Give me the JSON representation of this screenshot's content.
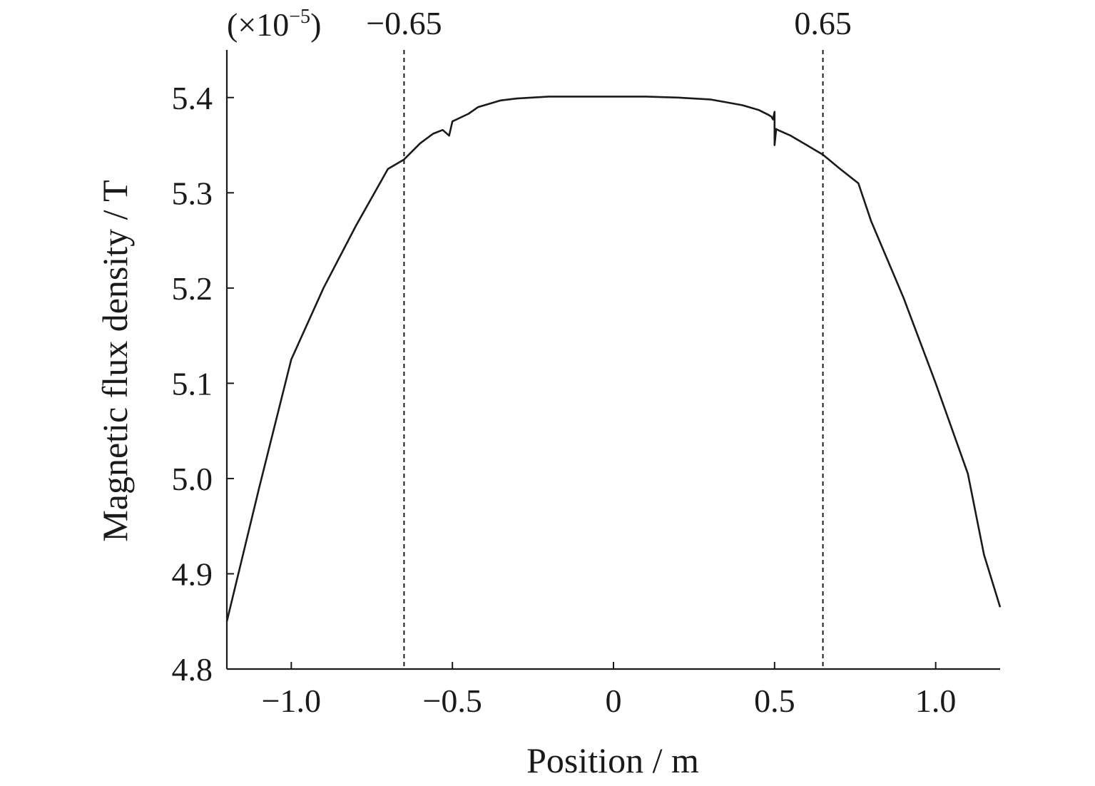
{
  "chart_data": {
    "type": "line",
    "title": "",
    "xlabel": "Position / m",
    "ylabel": "Magnetic flux density / T",
    "y_scale_prefix": "(×10",
    "y_scale_exponent": "−5",
    "y_scale_suffix": ")",
    "xlim": [
      -1.2,
      1.2
    ],
    "ylim": [
      4.8,
      5.45
    ],
    "grid": false,
    "legend": "none",
    "line_color": "#1a1a1a",
    "x_ticks": [
      {
        "value": -1.0,
        "label": "−1.0"
      },
      {
        "value": -0.5,
        "label": "−0.5"
      },
      {
        "value": 0,
        "label": "0"
      },
      {
        "value": 0.5,
        "label": "0.5"
      },
      {
        "value": 1.0,
        "label": "1.0"
      }
    ],
    "y_ticks": [
      {
        "value": 4.8,
        "label": "4.8"
      },
      {
        "value": 4.9,
        "label": "4.9"
      },
      {
        "value": 5.0,
        "label": "5.0"
      },
      {
        "value": 5.1,
        "label": "5.1"
      },
      {
        "value": 5.2,
        "label": "5.2"
      },
      {
        "value": 5.3,
        "label": "5.3"
      },
      {
        "value": 5.4,
        "label": "5.4"
      }
    ],
    "reference_lines": [
      {
        "x": -0.65,
        "label": "−0.65",
        "style": "dashed"
      },
      {
        "x": 0.65,
        "label": "0.65",
        "style": "dashed"
      }
    ],
    "series": [
      {
        "x": [
          -1.2,
          -1.1,
          -1.0,
          -0.9,
          -0.8,
          -0.7,
          -0.65,
          -0.6,
          -0.56,
          -0.53,
          -0.52,
          -0.51,
          -0.5,
          -0.45,
          -0.42,
          -0.35,
          -0.3,
          -0.2,
          -0.1,
          0.0,
          0.1,
          0.2,
          0.3,
          0.35,
          0.4,
          0.45,
          0.48,
          0.49,
          0.495,
          0.5,
          0.5,
          0.505,
          0.51,
          0.55,
          0.6,
          0.65,
          0.7,
          0.76,
          0.8,
          0.9,
          1.0,
          1.1,
          1.15,
          1.2
        ],
        "y": [
          4.85,
          4.99,
          5.125,
          5.2,
          5.265,
          5.325,
          5.335,
          5.352,
          5.362,
          5.366,
          5.363,
          5.36,
          5.375,
          5.383,
          5.39,
          5.397,
          5.399,
          5.401,
          5.401,
          5.401,
          5.401,
          5.4,
          5.398,
          5.395,
          5.392,
          5.387,
          5.382,
          5.38,
          5.377,
          5.385,
          5.35,
          5.367,
          5.366,
          5.36,
          5.35,
          5.34,
          5.326,
          5.31,
          5.27,
          5.19,
          5.1,
          5.005,
          4.92,
          4.865
        ]
      }
    ]
  }
}
